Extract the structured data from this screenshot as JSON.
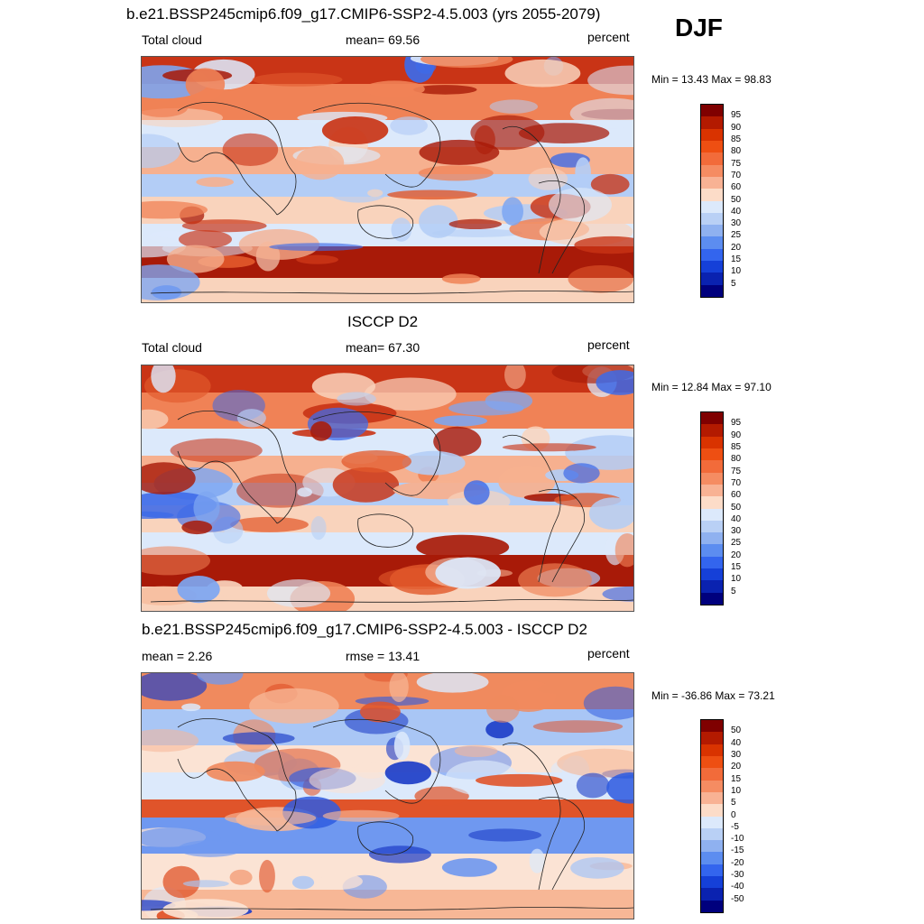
{
  "season": "DJF",
  "panels": [
    {
      "title": "b.e21.BSSP245cmip6.f09_g17.CMIP6-SSP2-4.5.003 (yrs 2055-2079)",
      "left_label": "Total cloud",
      "center_label": "mean=  69.56",
      "units": "percent",
      "minmax": "Min =  13.43 Max =  98.83",
      "colorbar_labels": [
        "95",
        "90",
        "85",
        "80",
        "75",
        "70",
        "60",
        "50",
        "40",
        "30",
        "25",
        "20",
        "15",
        "10",
        "5"
      ]
    },
    {
      "title": "ISCCP D2",
      "left_label": "Total cloud",
      "center_label": "mean=  67.30",
      "units": "percent",
      "minmax": "Min =  12.84 Max =  97.10",
      "colorbar_labels": [
        "95",
        "90",
        "85",
        "80",
        "75",
        "70",
        "60",
        "50",
        "40",
        "30",
        "25",
        "20",
        "15",
        "10",
        "5"
      ]
    },
    {
      "title": "b.e21.BSSP245cmip6.f09_g17.CMIP6-SSP2-4.5.003 - ISCCP D2",
      "left_label": "mean =   2.26",
      "center_label": "rmse =  13.41",
      "units": "percent",
      "minmax": "Min = -36.86 Max =  73.21",
      "colorbar_labels": [
        "50",
        "40",
        "30",
        "20",
        "15",
        "10",
        "5",
        "0",
        "-5",
        "-10",
        "-15",
        "-20",
        "-30",
        "-40",
        "-50"
      ]
    }
  ],
  "colorbar_colors": [
    "#7f0000",
    "#b31a00",
    "#d93300",
    "#ee4f12",
    "#f26b3a",
    "#f58c62",
    "#f8b294",
    "#fcdcc8",
    "#dce9fb",
    "#b9d0f5",
    "#8fb1f0",
    "#5c8df0",
    "#3365ee",
    "#1540d8",
    "#0a22b0",
    "#00007d"
  ],
  "map_palettes": {
    "abs": [
      "#f9d3bc",
      "#f6b08f",
      "#f08256",
      "#e25a2c",
      "#c93416",
      "#a81a08",
      "#dce9fb",
      "#b3cdf6",
      "#7da6f2",
      "#3d6ae8"
    ],
    "diff": [
      "#fbe3d4",
      "#f7b796",
      "#f08a5e",
      "#e0542a",
      "#dce9fb",
      "#a9c6f5",
      "#6f98f0",
      "#2f5ce0",
      "#1f3fc8"
    ]
  }
}
